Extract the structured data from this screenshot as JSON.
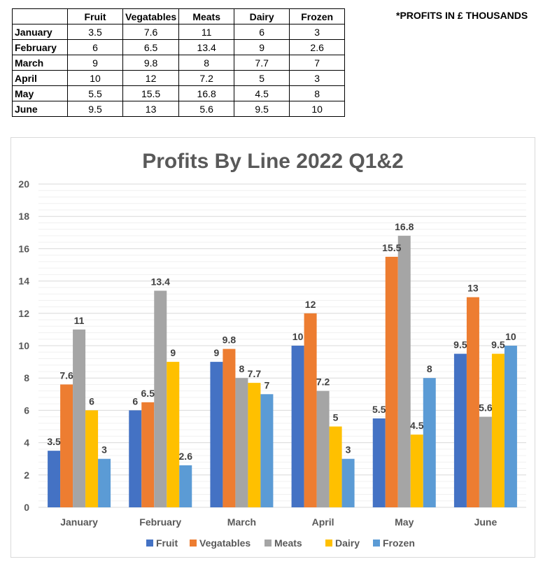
{
  "note": "*PROFITS IN £ THOUSANDS",
  "table": {
    "columns": [
      "Fruit",
      "Vegatables",
      "Meats",
      "Dairy",
      "Frozen"
    ],
    "rows": [
      {
        "label": "January",
        "values": [
          "3.5",
          "7.6",
          "11",
          "6",
          "3"
        ]
      },
      {
        "label": "February",
        "values": [
          "6",
          "6.5",
          "13.4",
          "9",
          "2.6"
        ]
      },
      {
        "label": "March",
        "values": [
          "9",
          "9.8",
          "8",
          "7.7",
          "7"
        ]
      },
      {
        "label": "April",
        "values": [
          "10",
          "12",
          "7.2",
          "5",
          "3"
        ]
      },
      {
        "label": "May",
        "values": [
          "5.5",
          "15.5",
          "16.8",
          "4.5",
          "8"
        ]
      },
      {
        "label": "June",
        "values": [
          "9.5",
          "13",
          "5.6",
          "9.5",
          "10"
        ]
      }
    ]
  },
  "chart_data": {
    "type": "bar",
    "title": "Profits By Line 2022 Q1&2",
    "xlabel": "",
    "ylabel": "",
    "ylim": [
      0,
      20
    ],
    "yticks": [
      0,
      2,
      4,
      6,
      8,
      10,
      12,
      14,
      16,
      18,
      20
    ],
    "grid": true,
    "legend_position": "bottom",
    "categories": [
      "January",
      "February",
      "March",
      "April",
      "May",
      "June"
    ],
    "series": [
      {
        "name": "Fruit",
        "color": "#4472c4",
        "values": [
          3.5,
          6,
          9,
          10,
          5.5,
          9.5
        ]
      },
      {
        "name": "Vegatables",
        "color": "#ed7d31",
        "values": [
          7.6,
          6.5,
          9.8,
          12,
          15.5,
          13
        ]
      },
      {
        "name": "Meats",
        "color": "#a5a5a5",
        "values": [
          11,
          13.4,
          8,
          7.2,
          16.8,
          5.6
        ]
      },
      {
        "name": "Dairy",
        "color": "#ffc000",
        "values": [
          6,
          9,
          7.7,
          5,
          4.5,
          9.5
        ]
      },
      {
        "name": "Frozen",
        "color": "#5b9bd5",
        "values": [
          3,
          2.6,
          7,
          3,
          8,
          10
        ]
      }
    ]
  }
}
